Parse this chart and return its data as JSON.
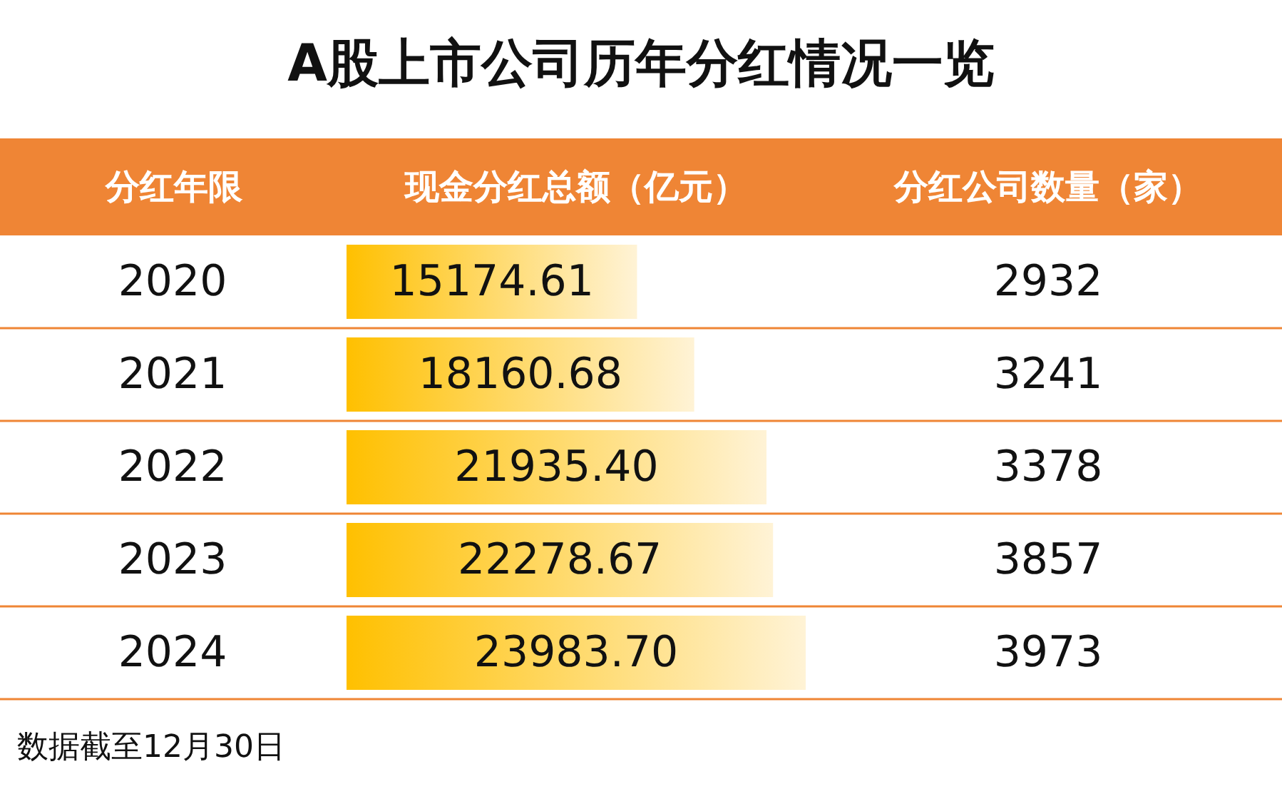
{
  "chart_data": [
    {
      "type": "bar",
      "orientation": "horizontal",
      "title": "A股上市公司历年分红情况一览",
      "ylabel": "分红年限",
      "xlabel": "现金分红总额（亿元）",
      "categories": [
        "2020",
        "2021",
        "2022",
        "2023",
        "2024"
      ],
      "values": [
        15174.61,
        18160.68,
        21935.4,
        22278.67,
        23983.7
      ],
      "color": "#ffc000",
      "value_labels": [
        "15174.61",
        "18160.68",
        "21935.40",
        "22278.67",
        "23983.70"
      ],
      "tick_labels": "y",
      "annotations": [
        "数据截至12月30日"
      ]
    },
    {
      "type": "other",
      "title": "分红公司数量（家）",
      "annotations": [
        "2932",
        "3241",
        "3378",
        "3857",
        "3973"
      ]
    }
  ]
}
